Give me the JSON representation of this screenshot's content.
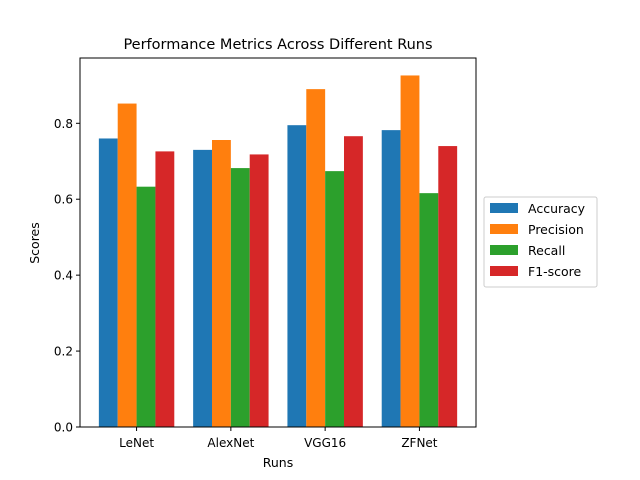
{
  "chart_data": {
    "type": "bar",
    "title": "Performance Metrics Across Different Runs",
    "xlabel": "Runs",
    "ylabel": "Scores",
    "categories": [
      "LeNet",
      "AlexNet",
      "VGG16",
      "ZFNet"
    ],
    "series": [
      {
        "name": "Accuracy",
        "color": "#1f77b4",
        "values": [
          0.76,
          0.73,
          0.795,
          0.782
        ]
      },
      {
        "name": "Precision",
        "color": "#ff7f0e",
        "values": [
          0.852,
          0.756,
          0.89,
          0.926
        ]
      },
      {
        "name": "Recall",
        "color": "#2ca02c",
        "values": [
          0.633,
          0.682,
          0.674,
          0.616
        ]
      },
      {
        "name": "F1-score",
        "color": "#d62728",
        "values": [
          0.726,
          0.718,
          0.766,
          0.74
        ]
      }
    ],
    "ylim": [
      0,
      0.972
    ],
    "yticks": [
      0.0,
      0.2,
      0.4,
      0.6,
      0.8
    ],
    "ytick_labels": [
      "0.0",
      "0.2",
      "0.4",
      "0.6",
      "0.8"
    ],
    "grid": false,
    "legend_position": "center-right"
  }
}
